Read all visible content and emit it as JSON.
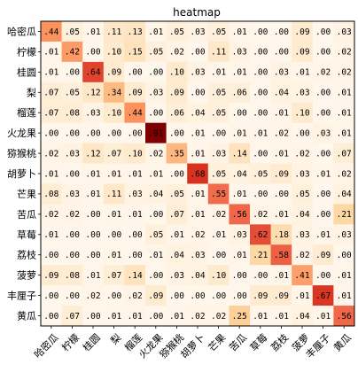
{
  "chart_data": {
    "type": "heatmap",
    "title": "heatmap",
    "categories": [
      "哈密瓜",
      "柠檬",
      "桂圆",
      "梨",
      "榴莲",
      "火龙果",
      "猕猴桃",
      "胡萝卜",
      "芒果",
      "苦瓜",
      "草莓",
      "荔枝",
      "菠萝",
      "丰厘子",
      "黄瓜"
    ],
    "x_categories": [
      "哈密瓜",
      "柠檬",
      "桂圆",
      "梨",
      "榴莲",
      "火龙果",
      "猕猴桃",
      "胡萝卜",
      "芒果",
      "苦瓜",
      "草莓",
      "荔枝",
      "菠萝",
      "丰厘子",
      "黄瓜"
    ],
    "y_categories": [
      "哈密瓜",
      "柠檬",
      "桂圆",
      "梨",
      "榴莲",
      "火龙果",
      "猕猴桃",
      "胡萝卜",
      "芒果",
      "苦瓜",
      "草莓",
      "荔枝",
      "菠萝",
      "丰厘子",
      "黄瓜"
    ],
    "values": [
      [
        0.44,
        0.05,
        0.01,
        0.11,
        0.13,
        0.01,
        0.05,
        0.03,
        0.05,
        0.01,
        0.0,
        0.0,
        0.09,
        0.0,
        0.03
      ],
      [
        0.01,
        0.42,
        0.0,
        0.1,
        0.15,
        0.05,
        0.02,
        0.0,
        0.11,
        0.03,
        0.0,
        0.0,
        0.09,
        0.0,
        0.02
      ],
      [
        0.01,
        0.0,
        0.64,
        0.09,
        0.0,
        0.0,
        0.1,
        0.03,
        0.01,
        0.01,
        0.0,
        0.03,
        0.01,
        0.02,
        0.02
      ],
      [
        0.07,
        0.05,
        0.12,
        0.34,
        0.09,
        0.03,
        0.09,
        0.0,
        0.05,
        0.06,
        0.0,
        0.04,
        0.03,
        0.0,
        0.01
      ],
      [
        0.07,
        0.08,
        0.03,
        0.1,
        0.44,
        0.0,
        0.06,
        0.04,
        0.05,
        0.0,
        0.0,
        0.01,
        0.1,
        0.0,
        0.01
      ],
      [
        0.0,
        0.0,
        0.0,
        0.0,
        0.0,
        0.91,
        0.0,
        0.01,
        0.0,
        0.01,
        0.01,
        0.02,
        0.0,
        0.03,
        0.01
      ],
      [
        0.02,
        0.03,
        0.12,
        0.07,
        0.1,
        0.02,
        0.35,
        0.01,
        0.03,
        0.14,
        0.0,
        0.01,
        0.02,
        0.0,
        0.07
      ],
      [
        0.01,
        0.0,
        0.01,
        0.01,
        0.01,
        0.01,
        0.0,
        0.68,
        0.05,
        0.04,
        0.05,
        0.09,
        0.03,
        0.01,
        0.02
      ],
      [
        0.08,
        0.03,
        0.01,
        0.11,
        0.03,
        0.04,
        0.05,
        0.01,
        0.55,
        0.01,
        0.0,
        0.0,
        0.05,
        0.0,
        0.04
      ],
      [
        0.02,
        0.02,
        0.0,
        0.01,
        0.01,
        0.0,
        0.07,
        0.01,
        0.02,
        0.56,
        0.02,
        0.01,
        0.04,
        0.0,
        0.21
      ],
      [
        0.01,
        0.0,
        0.0,
        0.0,
        0.0,
        0.05,
        0.01,
        0.02,
        0.01,
        0.03,
        0.62,
        0.18,
        0.03,
        0.01,
        0.03
      ],
      [
        0.0,
        0.0,
        0.0,
        0.01,
        0.0,
        0.01,
        0.04,
        0.03,
        0.0,
        0.01,
        0.21,
        0.58,
        0.02,
        0.09,
        0.0
      ],
      [
        0.09,
        0.08,
        0.01,
        0.07,
        0.14,
        0.0,
        0.03,
        0.04,
        0.1,
        0.0,
        0.0,
        0.01,
        0.41,
        0.0,
        0.01
      ],
      [
        0.0,
        0.0,
        0.02,
        0.0,
        0.02,
        0.09,
        0.0,
        0.0,
        0.0,
        0.0,
        0.09,
        0.09,
        0.01,
        0.67,
        0.01
      ],
      [
        0.0,
        0.07,
        0.0,
        0.01,
        0.01,
        0.0,
        0.01,
        0.02,
        0.02,
        0.25,
        0.01,
        0.01,
        0.04,
        0.01,
        0.56
      ]
    ],
    "value_format": "2-decimal, leading zero dropped",
    "colormap": "OrRd",
    "vmin": 0,
    "vmax": 0.91,
    "grid": false,
    "legend": "none",
    "x_tick_rotation_deg": 45
  }
}
